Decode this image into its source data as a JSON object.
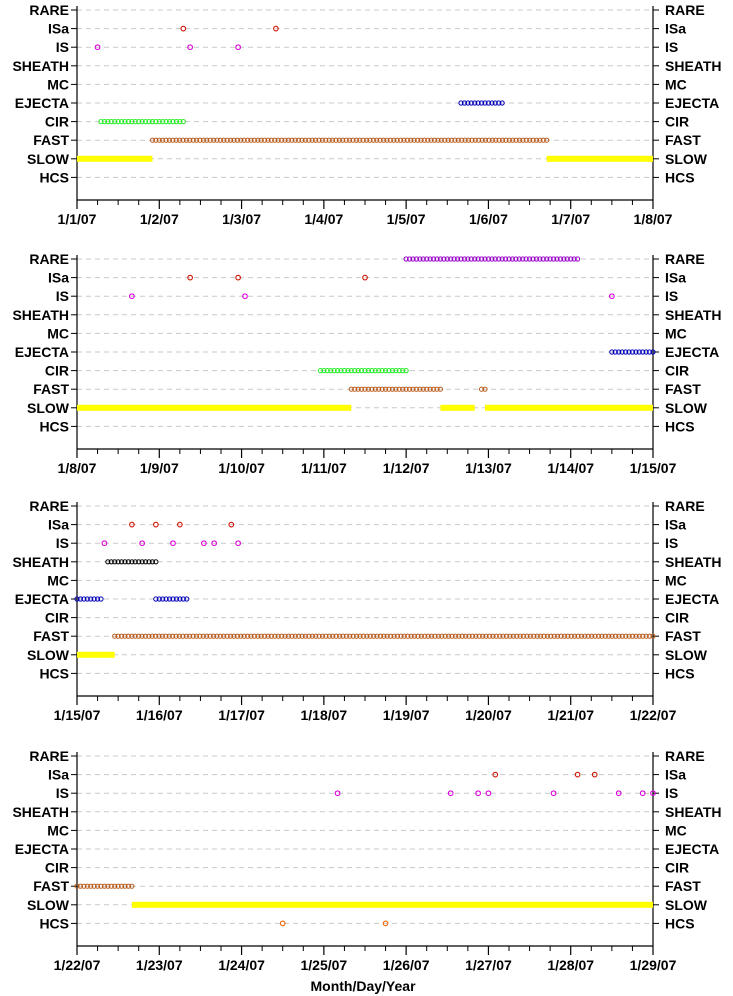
{
  "colors": {
    "RARE": "#9900cc",
    "ISa": "#cc1100",
    "IS": "#dd00dd",
    "SHEATH": "#000000",
    "EJECTA": "#0000bb",
    "CIR": "#22ee22",
    "FAST": "#b85a1a",
    "SLOW": "#ffff00",
    "HCS": "#ee6600",
    "axis": "#000000",
    "grid": "#c8c8c8"
  },
  "xlabel": "Month/Day/Year",
  "chart_data": [
    {
      "type": "scatter",
      "categories": [
        "RARE",
        "ISa",
        "IS",
        "SHEATH",
        "MC",
        "EJECTA",
        "CIR",
        "FAST",
        "SLOW",
        "HCS"
      ],
      "xlim": [
        "2007-01-01",
        "2007-01-08"
      ],
      "xticks": [
        "1/1/07",
        "1/2/07",
        "1/3/07",
        "1/4/07",
        "1/5/07",
        "1/6/07",
        "1/7/07",
        "1/8/07"
      ],
      "grid": true,
      "series": [
        {
          "category": "ISa",
          "points": [
            "2007-01-02T07:00",
            "2007-01-03T10:00"
          ]
        },
        {
          "category": "IS",
          "points": [
            "2007-01-01T06:00",
            "2007-01-02T09:00",
            "2007-01-02T23:00"
          ]
        },
        {
          "category": "EJECTA",
          "ranges": [
            [
              "2007-01-05T16:00",
              "2007-01-06T04:00"
            ]
          ]
        },
        {
          "category": "CIR",
          "ranges": [
            [
              "2007-01-01T07:00",
              "2007-01-02T07:00"
            ]
          ]
        },
        {
          "category": "FAST",
          "ranges": [
            [
              "2007-01-01T22:00",
              "2007-01-06T17:00"
            ]
          ]
        },
        {
          "category": "SLOW",
          "ranges": [
            [
              "2007-01-01T00:00",
              "2007-01-01T22:00"
            ],
            [
              "2007-01-06T17:00",
              "2007-01-08T00:00"
            ]
          ]
        }
      ]
    },
    {
      "type": "scatter",
      "categories": [
        "RARE",
        "ISa",
        "IS",
        "SHEATH",
        "MC",
        "EJECTA",
        "CIR",
        "FAST",
        "SLOW",
        "HCS"
      ],
      "xlim": [
        "2007-01-08",
        "2007-01-15"
      ],
      "xticks": [
        "1/8/07",
        "1/9/07",
        "1/10/07",
        "1/11/07",
        "1/12/07",
        "1/13/07",
        "1/14/07",
        "1/15/07"
      ],
      "grid": true,
      "series": [
        {
          "category": "RARE",
          "ranges": [
            [
              "2007-01-12T00:00",
              "2007-01-14T02:00"
            ]
          ]
        },
        {
          "category": "ISa",
          "points": [
            "2007-01-09T09:00",
            "2007-01-09T23:00",
            "2007-01-11T12:00"
          ]
        },
        {
          "category": "IS",
          "points": [
            "2007-01-08T16:00",
            "2007-01-10T01:00",
            "2007-01-14T12:00"
          ]
        },
        {
          "category": "EJECTA",
          "ranges": [
            [
              "2007-01-14T12:00",
              "2007-01-15T00:00"
            ]
          ]
        },
        {
          "category": "CIR",
          "ranges": [
            [
              "2007-01-10T23:00",
              "2007-01-12T00:00"
            ]
          ]
        },
        {
          "category": "FAST",
          "ranges": [
            [
              "2007-01-11T08:00",
              "2007-01-12T10:00"
            ],
            [
              "2007-01-12T22:00",
              "2007-01-12T23:00"
            ]
          ]
        },
        {
          "category": "SLOW",
          "ranges": [
            [
              "2007-01-08T00:00",
              "2007-01-11T08:00"
            ],
            [
              "2007-01-12T10:00",
              "2007-01-12T20:00"
            ],
            [
              "2007-01-12T23:00",
              "2007-01-15T00:00"
            ]
          ]
        }
      ]
    },
    {
      "type": "scatter",
      "categories": [
        "RARE",
        "ISa",
        "IS",
        "SHEATH",
        "MC",
        "EJECTA",
        "CIR",
        "FAST",
        "SLOW",
        "HCS"
      ],
      "xlim": [
        "2007-01-15",
        "2007-01-22"
      ],
      "xticks": [
        "1/15/07",
        "1/16/07",
        "1/17/07",
        "1/18/07",
        "1/19/07",
        "1/20/07",
        "1/21/07",
        "1/22/07"
      ],
      "grid": true,
      "series": [
        {
          "category": "ISa",
          "points": [
            "2007-01-15T16:00",
            "2007-01-15T23:00",
            "2007-01-16T06:00",
            "2007-01-16T21:00"
          ]
        },
        {
          "category": "IS",
          "points": [
            "2007-01-15T08:00",
            "2007-01-15T19:00",
            "2007-01-16T04:00",
            "2007-01-16T13:00",
            "2007-01-16T16:00",
            "2007-01-16T23:00"
          ]
        },
        {
          "category": "SHEATH",
          "ranges": [
            [
              "2007-01-15T09:00",
              "2007-01-15T23:00"
            ]
          ]
        },
        {
          "category": "EJECTA",
          "ranges": [
            [
              "2007-01-15T00:00",
              "2007-01-15T07:00"
            ],
            [
              "2007-01-15T23:00",
              "2007-01-16T08:00"
            ]
          ]
        },
        {
          "category": "FAST",
          "ranges": [
            [
              "2007-01-15T11:00",
              "2007-01-22T00:00"
            ]
          ]
        },
        {
          "category": "SLOW",
          "ranges": [
            [
              "2007-01-15T00:00",
              "2007-01-15T11:00"
            ]
          ]
        }
      ]
    },
    {
      "type": "scatter",
      "categories": [
        "RARE",
        "ISa",
        "IS",
        "SHEATH",
        "MC",
        "EJECTA",
        "CIR",
        "FAST",
        "SLOW",
        "HCS"
      ],
      "xlim": [
        "2007-01-22",
        "2007-01-29"
      ],
      "xticks": [
        "1/22/07",
        "1/23/07",
        "1/24/07",
        "1/25/07",
        "1/26/07",
        "1/27/07",
        "1/28/07",
        "1/29/07"
      ],
      "grid": true,
      "series": [
        {
          "category": "ISa",
          "points": [
            "2007-01-27T02:00",
            "2007-01-28T02:00",
            "2007-01-28T07:00"
          ]
        },
        {
          "category": "IS",
          "points": [
            "2007-01-25T04:00",
            "2007-01-26T13:00",
            "2007-01-26T21:00",
            "2007-01-27T00:00",
            "2007-01-27T19:00",
            "2007-01-28T14:00",
            "2007-01-28T21:00",
            "2007-01-29T00:00"
          ]
        },
        {
          "category": "FAST",
          "ranges": [
            [
              "2007-01-22T00:00",
              "2007-01-22T16:00"
            ]
          ]
        },
        {
          "category": "SLOW",
          "ranges": [
            [
              "2007-01-22T16:00",
              "2007-01-29T00:00"
            ]
          ]
        },
        {
          "category": "HCS",
          "points": [
            "2007-01-24T12:00",
            "2007-01-25T18:00"
          ]
        }
      ]
    }
  ]
}
